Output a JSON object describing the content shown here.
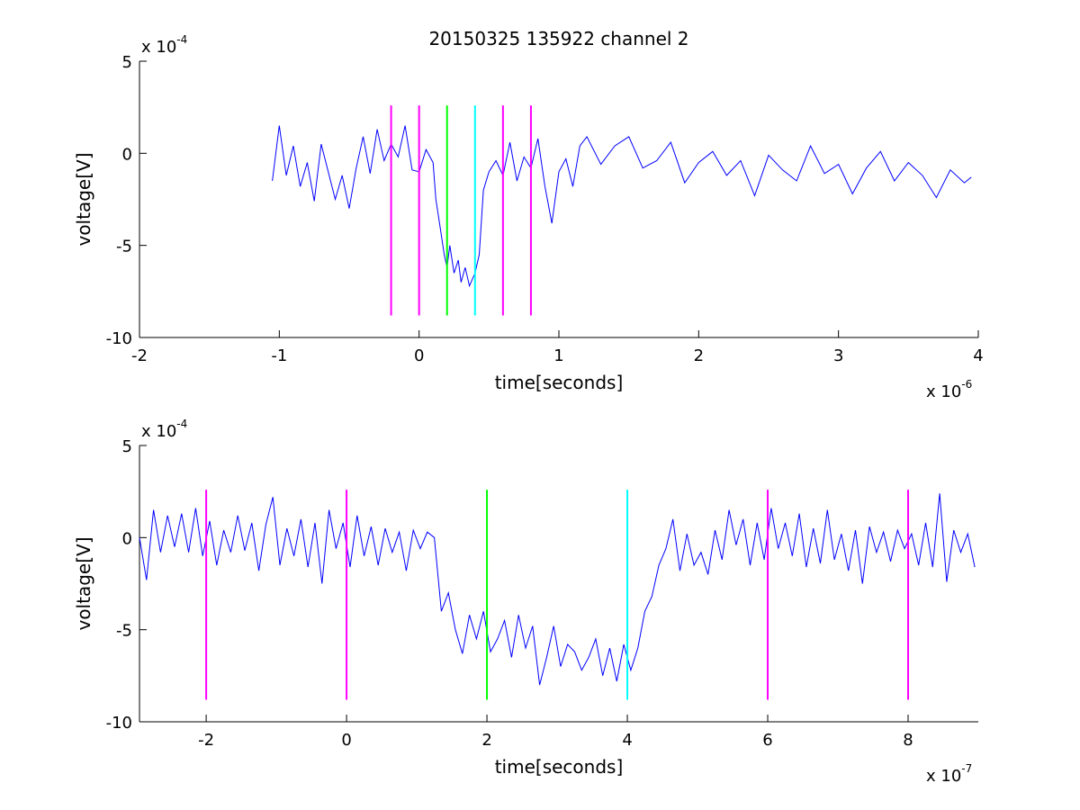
{
  "chart_data": [
    {
      "type": "line",
      "title": "20150325 135922 channel 2",
      "xlabel": "time[seconds]",
      "ylabel": "voltage[V]",
      "x_exponent_base": "x 10",
      "x_exponent_power": "-6",
      "y_exponent_base": "x 10",
      "y_exponent_power": "-4",
      "xlim": [
        -2,
        4
      ],
      "ylim": [
        -10,
        5
      ],
      "x_ticks": [
        -2,
        -1,
        0,
        1,
        2,
        3,
        4
      ],
      "y_ticks": [
        -10,
        -5,
        0,
        5
      ],
      "grid": false,
      "trace_color": "#0000ff",
      "markers": [
        {
          "x": -0.2,
          "color": "#ff00ff"
        },
        {
          "x": 0.0,
          "color": "#ff00ff"
        },
        {
          "x": 0.2,
          "color": "#00ff00"
        },
        {
          "x": 0.4,
          "color": "#00ffff"
        },
        {
          "x": 0.6,
          "color": "#ff00ff"
        },
        {
          "x": 0.8,
          "color": "#ff00ff"
        }
      ],
      "marker_range": [
        -8.8,
        2.6
      ],
      "series": [
        {
          "x": [
            -1.05,
            -1.0,
            -0.95,
            -0.9,
            -0.85,
            -0.8,
            -0.75,
            -0.7,
            -0.65,
            -0.6,
            -0.55,
            -0.5,
            -0.45,
            -0.4,
            -0.35,
            -0.3,
            -0.25,
            -0.2,
            -0.15,
            -0.1,
            -0.05,
            0.0,
            0.05,
            0.1,
            0.12,
            0.15,
            0.18,
            0.2,
            0.22,
            0.25,
            0.28,
            0.3,
            0.33,
            0.36,
            0.4,
            0.43,
            0.46,
            0.5,
            0.55,
            0.6,
            0.65,
            0.7,
            0.75,
            0.8,
            0.85,
            0.9,
            0.95,
            1.0,
            1.05,
            1.1,
            1.15,
            1.2,
            1.3,
            1.4,
            1.5,
            1.6,
            1.7,
            1.8,
            1.9,
            2.0,
            2.1,
            2.2,
            2.3,
            2.4,
            2.5,
            2.6,
            2.7,
            2.8,
            2.9,
            3.0,
            3.1,
            3.2,
            3.3,
            3.4,
            3.5,
            3.6,
            3.7,
            3.8,
            3.9,
            3.95
          ],
          "y": [
            -1.5,
            1.5,
            -1.2,
            0.4,
            -1.8,
            -0.5,
            -2.6,
            0.5,
            -1.0,
            -2.5,
            -1.2,
            -3.0,
            -0.8,
            0.9,
            -1.1,
            1.3,
            -0.4,
            0.5,
            -0.2,
            1.5,
            -0.9,
            -1.0,
            0.2,
            -0.5,
            -2.5,
            -4.0,
            -5.5,
            -6.2,
            -5.0,
            -6.5,
            -5.8,
            -7.0,
            -6.2,
            -7.2,
            -6.5,
            -5.5,
            -2.0,
            -1.0,
            -0.4,
            -1.2,
            0.6,
            -1.5,
            -0.2,
            -0.8,
            0.8,
            -1.8,
            -3.8,
            -1.0,
            -0.3,
            -1.8,
            0.4,
            0.9,
            -0.6,
            0.4,
            0.9,
            -0.8,
            -0.4,
            0.6,
            -1.6,
            -0.5,
            0.1,
            -1.2,
            -0.4,
            -2.3,
            -0.1,
            -0.9,
            -1.5,
            0.4,
            -1.1,
            -0.6,
            -2.2,
            -0.8,
            0.1,
            -1.5,
            -0.5,
            -1.2,
            -2.4,
            -0.9,
            -1.6,
            -1.3
          ]
        }
      ]
    },
    {
      "type": "line",
      "title": "",
      "xlabel": "time[seconds]",
      "ylabel": "voltage[V]",
      "x_exponent_base": "x 10",
      "x_exponent_power": "-7",
      "y_exponent_base": "x 10",
      "y_exponent_power": "-4",
      "xlim": [
        -2.95,
        9.0
      ],
      "ylim": [
        -10,
        5
      ],
      "x_ticks": [
        -2,
        0,
        2,
        4,
        6,
        8
      ],
      "y_ticks": [
        -10,
        -5,
        0,
        5
      ],
      "grid": false,
      "trace_color": "#0000ff",
      "markers": [
        {
          "x": -2,
          "color": "#ff00ff"
        },
        {
          "x": 0,
          "color": "#ff00ff"
        },
        {
          "x": 2,
          "color": "#00ff00"
        },
        {
          "x": 4,
          "color": "#00ffff"
        },
        {
          "x": 6,
          "color": "#ff00ff"
        },
        {
          "x": 8,
          "color": "#ff00ff"
        }
      ],
      "marker_range": [
        -8.8,
        2.6
      ],
      "series": [
        {
          "x": [
            -2.95,
            -2.85,
            -2.75,
            -2.65,
            -2.55,
            -2.45,
            -2.35,
            -2.25,
            -2.15,
            -2.05,
            -1.95,
            -1.85,
            -1.75,
            -1.65,
            -1.55,
            -1.45,
            -1.35,
            -1.25,
            -1.15,
            -1.05,
            -0.95,
            -0.85,
            -0.75,
            -0.65,
            -0.55,
            -0.45,
            -0.35,
            -0.25,
            -0.15,
            -0.05,
            0.05,
            0.15,
            0.25,
            0.35,
            0.45,
            0.55,
            0.65,
            0.75,
            0.85,
            0.95,
            1.05,
            1.15,
            1.25,
            1.35,
            1.45,
            1.55,
            1.65,
            1.75,
            1.85,
            1.95,
            2.05,
            2.15,
            2.25,
            2.35,
            2.45,
            2.55,
            2.65,
            2.75,
            2.85,
            2.95,
            3.05,
            3.15,
            3.25,
            3.35,
            3.45,
            3.55,
            3.65,
            3.75,
            3.85,
            3.95,
            4.05,
            4.15,
            4.25,
            4.35,
            4.45,
            4.55,
            4.65,
            4.75,
            4.85,
            4.95,
            5.05,
            5.15,
            5.25,
            5.35,
            5.45,
            5.55,
            5.65,
            5.75,
            5.85,
            5.95,
            6.05,
            6.15,
            6.25,
            6.35,
            6.45,
            6.55,
            6.65,
            6.75,
            6.85,
            6.95,
            7.05,
            7.15,
            7.25,
            7.35,
            7.45,
            7.55,
            7.65,
            7.75,
            7.85,
            7.95,
            8.05,
            8.15,
            8.25,
            8.35,
            8.45,
            8.55,
            8.65,
            8.75,
            8.85,
            8.95
          ],
          "y": [
            0.0,
            -2.3,
            1.5,
            -0.8,
            1.2,
            -0.5,
            1.3,
            -0.8,
            1.6,
            -1.0,
            0.9,
            -1.5,
            0.4,
            -0.8,
            1.2,
            -0.7,
            0.8,
            -1.8,
            0.7,
            2.2,
            -1.5,
            0.5,
            -1.0,
            1.0,
            -1.6,
            0.8,
            -2.5,
            1.5,
            -0.6,
            0.8,
            -1.6,
            1.2,
            -1.0,
            0.6,
            -1.5,
            0.5,
            -0.8,
            0.3,
            -1.8,
            0.4,
            -0.6,
            0.3,
            0.0,
            -4.0,
            -3.0,
            -5.0,
            -6.3,
            -4.2,
            -5.5,
            -4.0,
            -6.2,
            -5.5,
            -4.5,
            -6.5,
            -4.2,
            -6.0,
            -4.8,
            -8.0,
            -6.5,
            -4.8,
            -7.0,
            -5.8,
            -6.2,
            -7.2,
            -6.5,
            -5.5,
            -7.5,
            -6.0,
            -7.8,
            -5.8,
            -7.2,
            -6.0,
            -4.0,
            -3.2,
            -1.5,
            -0.6,
            1.0,
            -1.8,
            0.2,
            -1.5,
            -0.8,
            -2.0,
            0.4,
            -1.2,
            1.5,
            -0.4,
            1.0,
            -1.5,
            0.8,
            -1.2,
            1.6,
            -0.6,
            0.8,
            -1.0,
            1.3,
            -1.6,
            0.5,
            -1.4,
            1.5,
            -1.2,
            0.2,
            -1.8,
            0.4,
            -2.5,
            0.6,
            -0.8,
            0.3,
            -1.3,
            0.4,
            -0.6,
            0.2,
            -1.5,
            0.8,
            -1.6,
            2.4,
            -2.4,
            0.4,
            -0.8,
            0.2,
            -1.6
          ]
        }
      ]
    }
  ]
}
